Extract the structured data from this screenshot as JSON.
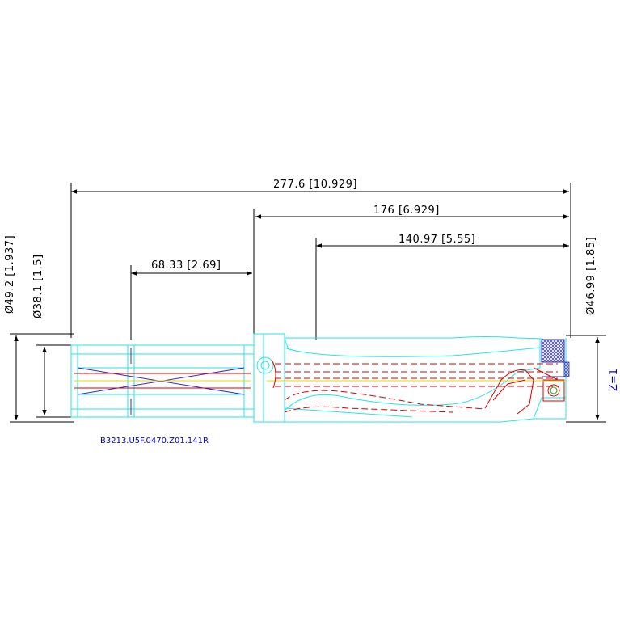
{
  "dimensions": {
    "overall_length": "277.6 [10.929]",
    "body_length": "176 [6.929]",
    "drill_depth": "140.97 [5.55]",
    "shank_length": "68.33 [2.69]",
    "flange_diameter": "Ø49.2 [1.937]",
    "shank_diameter": "Ø38.1 [1.5]",
    "drill_diameter": "Ø46.99 [1.85]"
  },
  "part_number": "B3213.U5F.0470.Z01.141R",
  "flutes_label": "Z=1",
  "colors": {
    "outline": "#22e6e6",
    "hidden": "#e00000",
    "centerline": "#2a2ad0",
    "dimension": "#000000",
    "annotation": "#0000dd"
  }
}
